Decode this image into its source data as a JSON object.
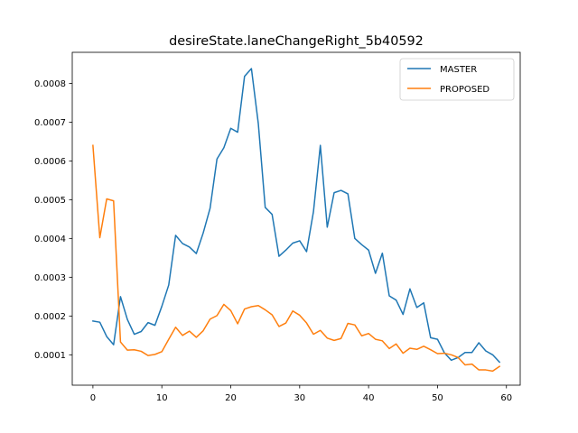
{
  "chart_data": {
    "type": "line",
    "title": "desireState.laneChangeRight_5b40592",
    "xlabel": "",
    "ylabel": "",
    "xlim": [
      -3,
      62
    ],
    "ylim": [
      2.16e-05,
      0.00088
    ],
    "x_ticks": [
      0,
      10,
      20,
      30,
      40,
      50,
      60
    ],
    "y_ticks": [
      0.0001,
      0.0002,
      0.0003,
      0.0004,
      0.0005,
      0.0006,
      0.0007,
      0.0008
    ],
    "y_tick_labels": [
      "0.0001",
      "0.0002",
      "0.0003",
      "0.0004",
      "0.0005",
      "0.0006",
      "0.0007",
      "0.0008"
    ],
    "grid": false,
    "legend": "top-right",
    "series": [
      {
        "name": "MASTER",
        "color": "#1f77b4",
        "x": [
          0,
          1,
          2,
          3,
          4,
          5,
          6,
          7,
          8,
          9,
          10,
          11,
          12,
          13,
          14,
          15,
          16,
          17,
          18,
          19,
          20,
          21,
          22,
          23,
          24,
          25,
          26,
          27,
          28,
          29,
          30,
          31,
          32,
          33,
          34,
          35,
          36,
          37,
          38,
          39,
          40,
          41,
          42,
          43,
          44,
          45,
          46,
          47,
          48,
          49,
          50,
          51,
          52,
          53,
          54,
          55,
          56,
          57,
          58,
          59
        ],
        "values": [
          0.000187,
          0.000184,
          0.000147,
          0.000126,
          0.00025,
          0.000191,
          0.000153,
          0.00016,
          0.000183,
          0.000176,
          0.000225,
          0.00028,
          0.000408,
          0.000387,
          0.000378,
          0.000361,
          0.000414,
          0.000478,
          0.000605,
          0.000634,
          0.000684,
          0.000674,
          0.000818,
          0.000838,
          0.000696,
          0.00048,
          0.000462,
          0.000354,
          0.00037,
          0.000388,
          0.000394,
          0.000366,
          0.000469,
          0.00064,
          0.000429,
          0.000518,
          0.000524,
          0.000515,
          0.0004,
          0.000384,
          0.00037,
          0.00031,
          0.000362,
          0.000252,
          0.000241,
          0.000204,
          0.00027,
          0.000222,
          0.000234,
          0.000144,
          0.00014,
          0.000105,
          8.6e-05,
          9.3e-05,
          0.000106,
          0.000106,
          0.000131,
          0.00011,
          0.0001,
          8.1e-05
        ]
      },
      {
        "name": "PROPOSED",
        "color": "#ff7f0e",
        "x": [
          0,
          1,
          2,
          3,
          4,
          5,
          6,
          7,
          8,
          9,
          10,
          11,
          12,
          13,
          14,
          15,
          16,
          17,
          18,
          19,
          20,
          21,
          22,
          23,
          24,
          25,
          26,
          27,
          28,
          29,
          30,
          31,
          32,
          33,
          34,
          35,
          36,
          37,
          38,
          39,
          40,
          41,
          42,
          43,
          44,
          45,
          46,
          47,
          48,
          49,
          50,
          51,
          52,
          53,
          54,
          55,
          56,
          57,
          58,
          59
        ],
        "values": [
          0.00064,
          0.000402,
          0.000502,
          0.000497,
          0.000133,
          0.000112,
          0.000113,
          0.000109,
          9.8e-05,
          0.000101,
          0.000108,
          0.00014,
          0.000171,
          0.00015,
          0.000161,
          0.000145,
          0.000162,
          0.000192,
          0.000201,
          0.00023,
          0.000214,
          0.00018,
          0.000218,
          0.000224,
          0.000227,
          0.000216,
          0.000203,
          0.000173,
          0.000182,
          0.000213,
          0.000202,
          0.000182,
          0.000153,
          0.000163,
          0.000143,
          0.000137,
          0.000142,
          0.000181,
          0.000177,
          0.000149,
          0.000155,
          0.00014,
          0.000136,
          0.000116,
          0.000128,
          0.000104,
          0.000117,
          0.000114,
          0.000122,
          0.000113,
          0.000103,
          0.000104,
          0.0001,
          9.3e-05,
          7.4e-05,
          7.6e-05,
          6.1e-05,
          6.1e-05,
          5.8e-05,
          7e-05
        ]
      }
    ]
  }
}
